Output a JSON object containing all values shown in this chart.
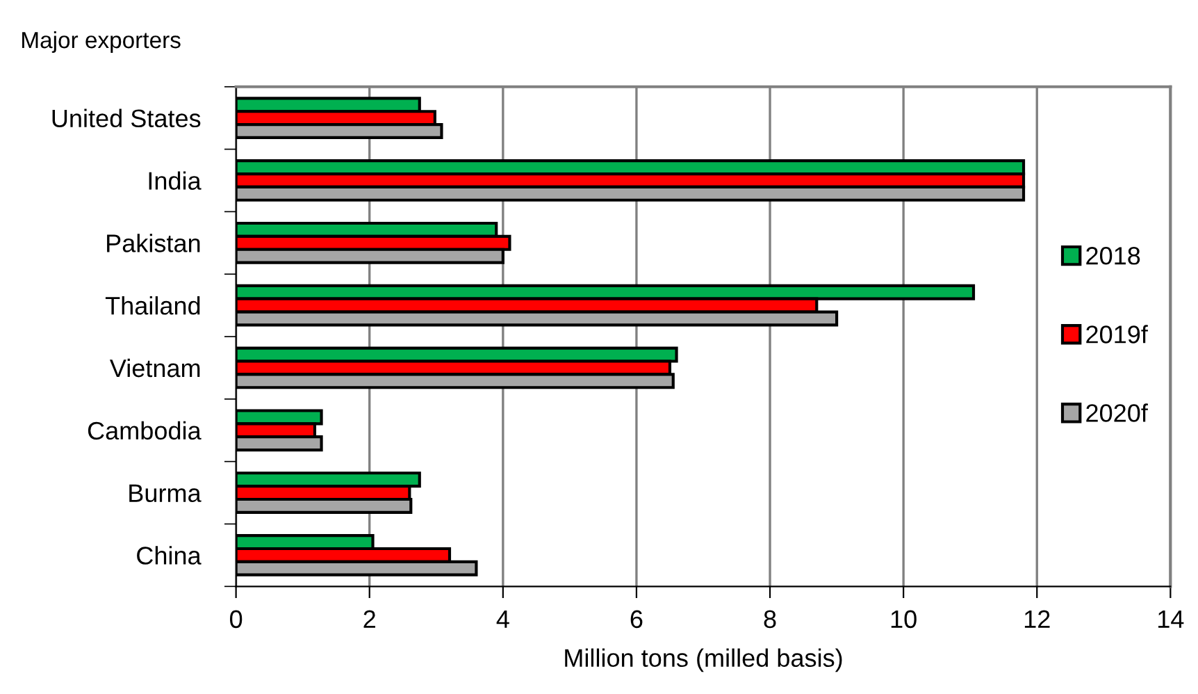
{
  "chart_data": {
    "type": "bar",
    "orientation": "horizontal",
    "title": "Major exporters",
    "xlabel": "Million tons (milled basis)",
    "categories": [
      "United States",
      "India",
      "Pakistan",
      "Thailand",
      "Vietnam",
      "Cambodia",
      "Burma",
      "China"
    ],
    "series": [
      {
        "name": "2018",
        "color": "#00b050",
        "values": [
          2.75,
          11.8,
          3.9,
          11.05,
          6.6,
          1.28,
          2.75,
          2.05
        ]
      },
      {
        "name": "2019f",
        "color": "#ff0000",
        "values": [
          2.98,
          11.8,
          4.1,
          8.7,
          6.5,
          1.18,
          2.6,
          3.2
        ]
      },
      {
        "name": "2020f",
        "color": "#a6a6a6",
        "values": [
          3.08,
          11.8,
          4.0,
          9.0,
          6.55,
          1.28,
          2.62,
          3.6
        ]
      }
    ],
    "xlim": [
      0,
      14
    ],
    "xticks": [
      0,
      2,
      4,
      6,
      8,
      10,
      12,
      14
    ],
    "grid": "x",
    "legend": "right"
  }
}
